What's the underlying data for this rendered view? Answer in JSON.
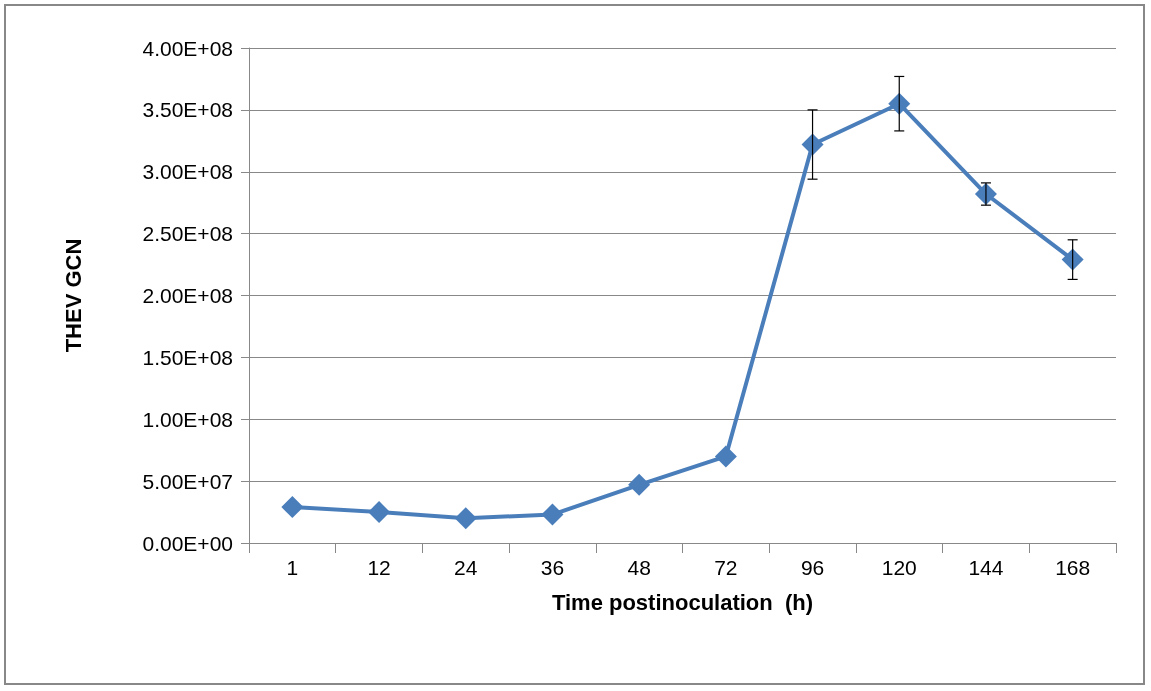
{
  "chart_data": {
    "type": "line",
    "xlabel": "Time postinoculation  (h)",
    "ylabel": "THEV GCN",
    "categories": [
      "1",
      "12",
      "24",
      "36",
      "48",
      "72",
      "96",
      "120",
      "144",
      "168"
    ],
    "series": [
      {
        "color": "#4a7ebb",
        "values": [
          29000000,
          25000000,
          20000000,
          23000000,
          47000000,
          70000000,
          322000000,
          355000000,
          282000000,
          229000000
        ],
        "errors": [
          null,
          null,
          null,
          null,
          null,
          null,
          28000000,
          22000000,
          9000000,
          16000000
        ]
      }
    ],
    "ylim": [
      0,
      400000000
    ],
    "yticks": [
      {
        "value": 0,
        "label": "0.00E+00"
      },
      {
        "value": 50000000,
        "label": "5.00E+07"
      },
      {
        "value": 100000000,
        "label": "1.00E+08"
      },
      {
        "value": 150000000,
        "label": "1.50E+08"
      },
      {
        "value": 200000000,
        "label": "2.00E+08"
      },
      {
        "value": 250000000,
        "label": "2.50E+08"
      },
      {
        "value": 300000000,
        "label": "3.00E+08"
      },
      {
        "value": 350000000,
        "label": "3.50E+08"
      },
      {
        "value": 400000000,
        "label": "4.00E+08"
      }
    ],
    "grid": "y",
    "marker": "diamond",
    "line_style": "solid"
  }
}
